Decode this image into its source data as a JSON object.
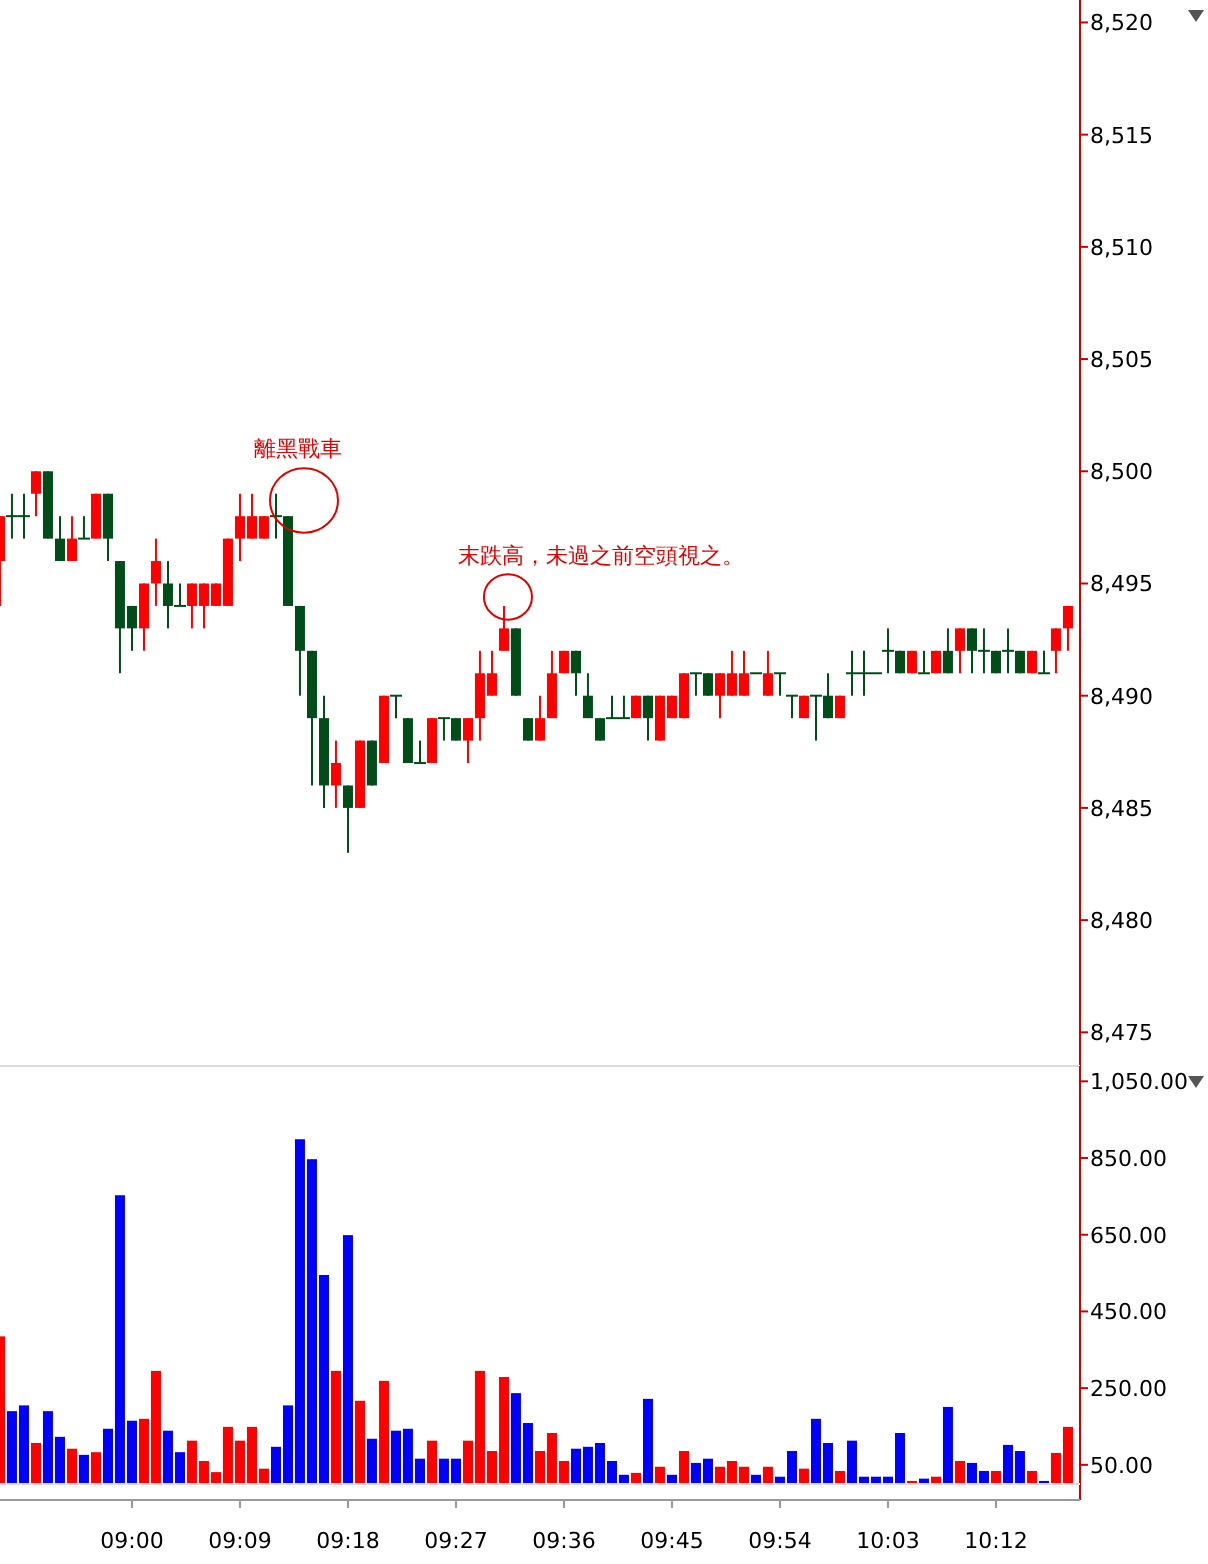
{
  "chart_data": [
    {
      "type": "candlestick",
      "tick_labels": "y",
      "x": [
        8.8167,
        8.8333,
        8.85,
        8.8667,
        8.8833,
        8.9,
        8.9167,
        8.9333,
        8.95,
        8.9667,
        8.9833,
        9,
        9.0167,
        9.0333,
        9.05,
        9.0667,
        9.0833,
        9.1,
        9.1167,
        9.1333,
        9.15,
        9.1667,
        9.1833,
        9.2,
        9.2167,
        9.2333,
        9.25,
        9.2667,
        9.2833,
        9.3,
        9.3167,
        9.3333,
        9.35,
        9.3667,
        9.3833,
        9.4,
        9.4167,
        9.4333,
        9.45,
        9.4667,
        9.4833,
        9.5,
        9.5167,
        9.5333,
        9.55,
        9.5667,
        9.5833,
        9.6,
        9.6167,
        9.6333,
        9.65,
        9.6667,
        9.6833,
        9.7,
        9.7167,
        9.7333,
        9.75,
        9.7667,
        9.7833,
        9.8,
        9.8167,
        9.8333,
        9.85,
        9.8667,
        9.8833,
        9.9,
        9.9167,
        9.9333,
        9.95,
        9.9667,
        9.9833,
        10,
        10.0167,
        10.0333,
        10.05,
        10.0667,
        10.0833,
        10.1,
        10.1167,
        10.1333,
        10.15,
        10.1667,
        10.1833,
        10.2,
        10.2167,
        10.2333,
        10.25,
        10.2667,
        10.2833,
        10.3
      ],
      "ohlc": [
        [
          8496,
          8498,
          8494,
          8498
        ],
        [
          8498,
          8499,
          8497,
          8498
        ],
        [
          8498,
          8499,
          8497,
          8498
        ],
        [
          8499,
          8500,
          8498,
          8500
        ],
        [
          8500,
          8500,
          8497,
          8497
        ],
        [
          8497,
          8498,
          8496,
          8496
        ],
        [
          8496,
          8498,
          8496,
          8497
        ],
        [
          8497,
          8498,
          8497,
          8497
        ],
        [
          8497,
          8499,
          8497,
          8499
        ],
        [
          8499,
          8499,
          8496,
          8497
        ],
        [
          8496,
          8496,
          8491,
          8493
        ],
        [
          8494,
          8494,
          8492,
          8493
        ],
        [
          8493,
          8495,
          8492,
          8495
        ],
        [
          8495,
          8497,
          8494,
          8496
        ],
        [
          8495,
          8496,
          8493,
          8494
        ],
        [
          8494,
          8495,
          8494,
          8494
        ],
        [
          8494,
          8495,
          8493,
          8495
        ],
        [
          8494,
          8495,
          8493,
          8495
        ],
        [
          8494,
          8495,
          8494,
          8495
        ],
        [
          8494,
          8497,
          8494,
          8497
        ],
        [
          8497,
          8499,
          8496,
          8498
        ],
        [
          8497,
          8499,
          8497,
          8498
        ],
        [
          8497,
          8498,
          8497,
          8498
        ],
        [
          8498,
          8499,
          8497,
          8498
        ],
        [
          8498,
          8498,
          8494,
          8494
        ],
        [
          8494,
          8494,
          8490,
          8492
        ],
        [
          8492,
          8492,
          8486,
          8489
        ],
        [
          8489,
          8490,
          8485,
          8486
        ],
        [
          8486,
          8488,
          8485,
          8487
        ],
        [
          8486,
          8486,
          8483,
          8485
        ],
        [
          8485,
          8488,
          8485,
          8488
        ],
        [
          8488,
          8488,
          8486,
          8486
        ],
        [
          8487,
          8490,
          8487,
          8490
        ],
        [
          8490,
          8490,
          8489,
          8490
        ],
        [
          8489,
          8489,
          8487,
          8487
        ],
        [
          8487,
          8488,
          8487,
          8487
        ],
        [
          8487,
          8489,
          8487,
          8489
        ],
        [
          8489,
          8489,
          8488,
          8489
        ],
        [
          8489,
          8489,
          8488,
          8488
        ],
        [
          8488,
          8489,
          8487,
          8489
        ],
        [
          8489,
          8492,
          8488,
          8491
        ],
        [
          8490,
          8492,
          8490,
          8491
        ],
        [
          8492,
          8494,
          8492,
          8493
        ],
        [
          8493,
          8493,
          8490,
          8490
        ],
        [
          8489,
          8489,
          8488,
          8488
        ],
        [
          8488,
          8490,
          8488,
          8489
        ],
        [
          8489,
          8492,
          8489,
          8491
        ],
        [
          8491,
          8492,
          8491,
          8492
        ],
        [
          8492,
          8492,
          8490,
          8491
        ],
        [
          8490,
          8491,
          8489,
          8489
        ],
        [
          8489,
          8489,
          8488,
          8488
        ],
        [
          8489,
          8490,
          8489,
          8489
        ],
        [
          8489,
          8490,
          8489,
          8489
        ],
        [
          8489,
          8490,
          8489,
          8490
        ],
        [
          8490,
          8490,
          8488,
          8489
        ],
        [
          8488,
          8490,
          8488,
          8490
        ],
        [
          8489,
          8490,
          8489,
          8490
        ],
        [
          8489,
          8491,
          8489,
          8491
        ],
        [
          8491,
          8491,
          8490,
          8491
        ],
        [
          8491,
          8491,
          8490,
          8490
        ],
        [
          8490,
          8491,
          8489,
          8491
        ],
        [
          8490,
          8492,
          8490,
          8491
        ],
        [
          8490,
          8492,
          8490,
          8491
        ],
        [
          8491,
          8491,
          8491,
          8491
        ],
        [
          8490,
          8492,
          8490,
          8491
        ],
        [
          8491,
          8491,
          8490,
          8491
        ],
        [
          8490,
          8490,
          8489,
          8490
        ],
        [
          8489,
          8490,
          8489,
          8490
        ],
        [
          8490,
          8490,
          8488,
          8490
        ],
        [
          8490,
          8491,
          8489,
          8489
        ],
        [
          8489,
          8490,
          8489,
          8490
        ],
        [
          8491,
          8492,
          8490,
          8491
        ],
        [
          8491,
          8492,
          8490,
          8491
        ],
        [
          8491,
          8491,
          8491,
          8491
        ],
        [
          8492,
          8493,
          8491,
          8492
        ],
        [
          8492,
          8492,
          8491,
          8491
        ],
        [
          8491,
          8492,
          8491,
          8492
        ],
        [
          8491,
          8492,
          8491,
          8491
        ],
        [
          8491,
          8492,
          8491,
          8492
        ],
        [
          8492,
          8493,
          8491,
          8491
        ],
        [
          8492,
          8493,
          8491,
          8493
        ],
        [
          8493,
          8493,
          8491,
          8492
        ],
        [
          8492,
          8493,
          8491,
          8492
        ],
        [
          8492,
          8492,
          8491,
          8491
        ],
        [
          8492,
          8493,
          8491,
          8492
        ],
        [
          8492,
          8492,
          8491,
          8491
        ],
        [
          8491,
          8492,
          8491,
          8492
        ],
        [
          8491,
          8492,
          8491,
          8491
        ],
        [
          8492,
          8493,
          8491,
          8493
        ],
        [
          8493,
          8494,
          8492,
          8494
        ]
      ],
      "colors": [
        "#ff0000",
        "#004d1a",
        "#004d1a",
        "#ff0000",
        "#004d1a",
        "#004d1a",
        "#ff0000",
        "#004d1a",
        "#ff0000",
        "#004d1a",
        "#004d1a",
        "#004d1a",
        "#ff0000",
        "#ff0000",
        "#004d1a",
        "#004d1a",
        "#ff0000",
        "#ff0000",
        "#ff0000",
        "#ff0000",
        "#ff0000",
        "#ff0000",
        "#ff0000",
        "#004d1a",
        "#004d1a",
        "#004d1a",
        "#004d1a",
        "#004d1a",
        "#ff0000",
        "#004d1a",
        "#ff0000",
        "#004d1a",
        "#ff0000",
        "#004d1a",
        "#004d1a",
        "#004d1a",
        "#ff0000",
        "#004d1a",
        "#004d1a",
        "#ff0000",
        "#ff0000",
        "#ff0000",
        "#ff0000",
        "#004d1a",
        "#004d1a",
        "#ff0000",
        "#ff0000",
        "#ff0000",
        "#004d1a",
        "#004d1a",
        "#004d1a",
        "#004d1a",
        "#004d1a",
        "#ff0000",
        "#004d1a",
        "#ff0000",
        "#ff0000",
        "#ff0000",
        "#004d1a",
        "#004d1a",
        "#ff0000",
        "#ff0000",
        "#ff0000",
        "#004d1a",
        "#ff0000",
        "#004d1a",
        "#004d1a",
        "#ff0000",
        "#004d1a",
        "#004d1a",
        "#ff0000",
        "#004d1a",
        "#004d1a",
        "#004d1a",
        "#004d1a",
        "#004d1a",
        "#ff0000",
        "#004d1a",
        "#ff0000",
        "#004d1a",
        "#ff0000",
        "#004d1a",
        "#004d1a",
        "#004d1a",
        "#004d1a",
        "#004d1a",
        "#ff0000",
        "#004d1a",
        "#ff0000",
        "#ff0000"
      ],
      "xlim": [
        8.8167,
        10.3167
      ],
      "ylim": [
        8473.5,
        8521
      ],
      "yticks": [
        {
          "value": 8475,
          "label": "8,475"
        },
        {
          "value": 8480,
          "label": "8,480"
        },
        {
          "value": 8485,
          "label": "8,485"
        },
        {
          "value": 8490,
          "label": "8,490"
        },
        {
          "value": 8495,
          "label": "8,495"
        },
        {
          "value": 8500,
          "label": "8,500"
        },
        {
          "value": 8505,
          "label": "8,505"
        },
        {
          "value": 8510,
          "label": "8,510"
        },
        {
          "value": 8515,
          "label": "8,515"
        },
        {
          "value": 8520,
          "label": "8,520"
        }
      ],
      "annotations": [
        {
          "text": "離黑戰車",
          "x": 9.2389,
          "y": 8498.7
        },
        {
          "text": "末跌高，未過之前空頭視之。",
          "x": 9.5222,
          "y": 8494.4
        }
      ]
    },
    {
      "type": "bar",
      "x": [
        8.8167,
        8.8333,
        8.85,
        8.8667,
        8.8833,
        8.9,
        8.9167,
        8.9333,
        8.95,
        8.9667,
        8.9833,
        9,
        9.0167,
        9.0333,
        9.05,
        9.0667,
        9.0833,
        9.1,
        9.1167,
        9.1333,
        9.15,
        9.1667,
        9.1833,
        9.2,
        9.2167,
        9.2333,
        9.25,
        9.2667,
        9.2833,
        9.3,
        9.3167,
        9.3333,
        9.35,
        9.3667,
        9.3833,
        9.4,
        9.4167,
        9.4333,
        9.45,
        9.4667,
        9.4833,
        9.5,
        9.5167,
        9.5333,
        9.55,
        9.5667,
        9.5833,
        9.6,
        9.6167,
        9.6333,
        9.65,
        9.6667,
        9.6833,
        9.7,
        9.7167,
        9.7333,
        9.75,
        9.7667,
        9.7833,
        9.8,
        9.8167,
        9.8333,
        9.85,
        9.8667,
        9.8833,
        9.9,
        9.9167,
        9.9333,
        9.95,
        9.9667,
        9.9833,
        10,
        10.0167,
        10.0333,
        10.05,
        10.0667,
        10.0833,
        10.1,
        10.1167,
        10.1333,
        10.15,
        10.1667,
        10.1833,
        10.2,
        10.2167,
        10.2333,
        10.25,
        10.2667,
        10.2833,
        10.3
      ],
      "values": [
        385,
        190,
        205,
        107,
        190,
        123,
        92,
        76,
        83,
        144,
        753,
        165,
        170,
        295,
        139,
        83,
        113,
        60,
        31,
        149,
        113,
        149,
        40,
        97,
        205,
        899,
        847,
        545,
        295,
        649,
        217,
        118,
        269,
        139,
        144,
        66,
        113,
        66,
        66,
        113,
        295,
        86,
        279,
        237,
        159,
        86,
        133,
        60,
        92,
        97,
        107,
        60,
        24,
        29,
        222,
        45,
        24,
        86,
        55,
        66,
        45,
        60,
        45,
        24,
        45,
        19,
        86,
        40,
        170,
        107,
        34,
        113,
        19,
        19,
        19,
        133,
        8,
        14,
        19,
        201,
        60,
        55,
        34,
        34,
        102,
        86,
        34,
        8,
        81,
        149
      ],
      "colors": [
        "#ff0000",
        "#0000ff",
        "#0000ff",
        "#ff0000",
        "#0000ff",
        "#0000ff",
        "#ff0000",
        "#0000ff",
        "#ff0000",
        "#0000ff",
        "#0000ff",
        "#0000ff",
        "#ff0000",
        "#ff0000",
        "#0000ff",
        "#0000ff",
        "#ff0000",
        "#ff0000",
        "#ff0000",
        "#ff0000",
        "#ff0000",
        "#ff0000",
        "#ff0000",
        "#0000ff",
        "#0000ff",
        "#0000ff",
        "#0000ff",
        "#0000ff",
        "#ff0000",
        "#0000ff",
        "#ff0000",
        "#0000ff",
        "#ff0000",
        "#0000ff",
        "#0000ff",
        "#0000ff",
        "#ff0000",
        "#0000ff",
        "#0000ff",
        "#ff0000",
        "#ff0000",
        "#ff0000",
        "#ff0000",
        "#0000ff",
        "#0000ff",
        "#ff0000",
        "#ff0000",
        "#ff0000",
        "#0000ff",
        "#0000ff",
        "#0000ff",
        "#0000ff",
        "#0000ff",
        "#ff0000",
        "#0000ff",
        "#ff0000",
        "#0000ff",
        "#ff0000",
        "#0000ff",
        "#0000ff",
        "#ff0000",
        "#ff0000",
        "#ff0000",
        "#0000ff",
        "#ff0000",
        "#0000ff",
        "#0000ff",
        "#ff0000",
        "#0000ff",
        "#0000ff",
        "#ff0000",
        "#0000ff",
        "#0000ff",
        "#0000ff",
        "#0000ff",
        "#0000ff",
        "#ff0000",
        "#0000ff",
        "#ff0000",
        "#0000ff",
        "#ff0000",
        "#0000ff",
        "#0000ff",
        "#ff0000",
        "#0000ff",
        "#0000ff",
        "#ff0000",
        "#0000ff",
        "#ff0000",
        "#ff0000"
      ],
      "xlim": [
        8.8167,
        10.3167
      ],
      "xticks": [
        {
          "value": 9,
          "label": "09:00"
        },
        {
          "value": 9.15,
          "label": "09:09"
        },
        {
          "value": 9.3,
          "label": "09:18"
        },
        {
          "value": 9.45,
          "label": "09:27"
        },
        {
          "value": 9.6,
          "label": "09:36"
        },
        {
          "value": 9.75,
          "label": "09:45"
        },
        {
          "value": 9.9,
          "label": "09:54"
        },
        {
          "value": 10.05,
          "label": "10:03"
        },
        {
          "value": 10.2,
          "label": "10:12"
        }
      ],
      "ylim": [
        0,
        1090
      ],
      "yticks": [
        {
          "value": 50,
          "label": "50.00"
        },
        {
          "value": 250,
          "label": "250.00"
        },
        {
          "value": 450,
          "label": "450.00"
        },
        {
          "value": 650,
          "label": "650.00"
        },
        {
          "value": 850,
          "label": "850.00"
        },
        {
          "value": 1050,
          "label": "1,050.00"
        }
      ]
    }
  ]
}
